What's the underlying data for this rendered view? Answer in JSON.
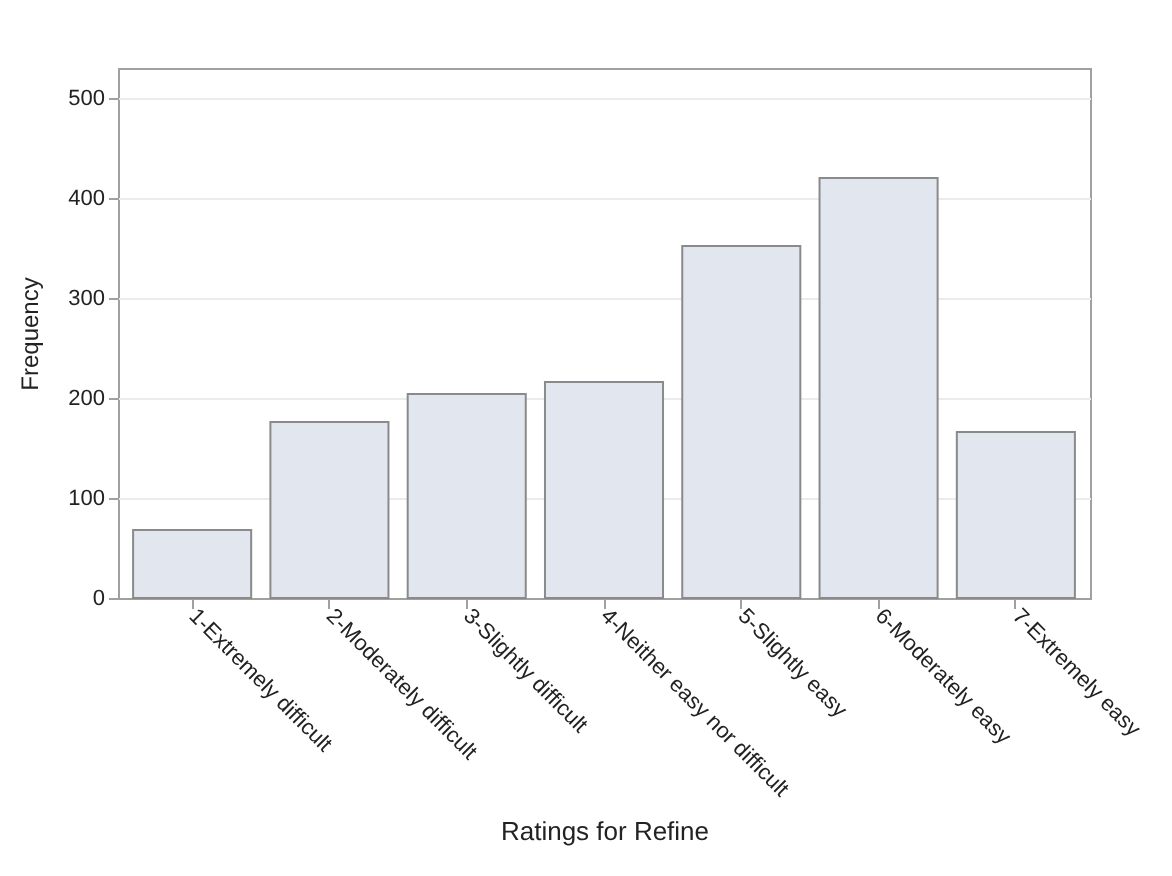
{
  "chart_data": {
    "type": "bar",
    "xlabel": "Ratings for Refine",
    "ylabel": "Frequency",
    "categories": [
      "1-Extremely difficult",
      "2-Moderately difficult",
      "3-Slightly difficult",
      "4-Neither easy nor difficult",
      "5-Slightly easy",
      "6-Moderately easy",
      "7-Extremely easy"
    ],
    "values": [
      68,
      176,
      204,
      216,
      352,
      420,
      166
    ],
    "color": "#e1e6ef",
    "ylim": [
      0,
      530
    ],
    "yticks": [
      0,
      100,
      200,
      300,
      400,
      500
    ],
    "grid": "y"
  }
}
